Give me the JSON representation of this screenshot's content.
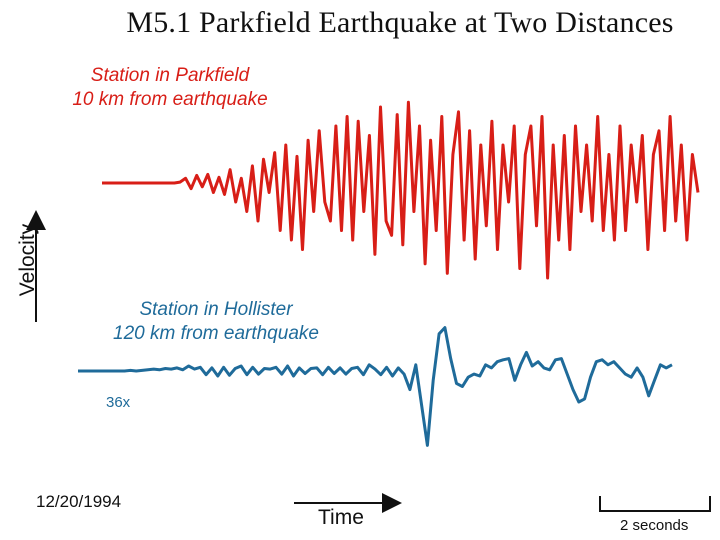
{
  "title": "M5.1 Parkfield Earthquake at Two Distances",
  "chart_data": {
    "type": "line",
    "title": "M5.1 Parkfield Earthquake at Two Distances",
    "xlabel": "Time",
    "ylabel": "Velocity",
    "scale_bar": "2 seconds",
    "date": "12/20/1994",
    "series": [
      {
        "name": "Station in Parkfield",
        "sublabel": "10 km from earthquake",
        "color": "#d81e17",
        "values": [
          0,
          0,
          0,
          0,
          0,
          0,
          0,
          0,
          0,
          0,
          0,
          0,
          0,
          0,
          1,
          5,
          -6,
          8,
          -4,
          9,
          -10,
          6,
          -12,
          14,
          -20,
          5,
          -30,
          18,
          -40,
          25,
          -10,
          32,
          -50,
          40,
          -60,
          28,
          -70,
          45,
          -30,
          55,
          -20,
          -40,
          60,
          -50,
          70,
          -60,
          65,
          -30,
          50,
          -75,
          80,
          -40,
          -55,
          72,
          -65,
          85,
          -30,
          60,
          -85,
          45,
          -50,
          70,
          -95,
          30,
          75,
          -60,
          55,
          -80,
          40,
          -45,
          65,
          -70,
          40,
          -20,
          60,
          -90,
          30,
          60,
          -45,
          70,
          -100,
          40,
          -60,
          50,
          -70,
          60,
          -30,
          40,
          -40,
          70,
          -50,
          30,
          -60,
          60,
          -50,
          40,
          -20,
          50,
          -70,
          30,
          55,
          -50,
          70,
          -40,
          40,
          -60,
          30,
          -10
        ],
        "scale": 1
      },
      {
        "name": "Station in Hollister",
        "sublabel": "120 km from earthquake",
        "note": "36x",
        "color": "#1f6b9a",
        "values": [
          0,
          0,
          0,
          0,
          0,
          0,
          0,
          0,
          0,
          1,
          0,
          1,
          2,
          3,
          2,
          4,
          3,
          5,
          2,
          8,
          3,
          6,
          -6,
          5,
          -8,
          6,
          -7,
          4,
          8,
          -6,
          6,
          -5,
          4,
          3,
          6,
          -5,
          8,
          -8,
          5,
          -4,
          4,
          5,
          -6,
          6,
          -4,
          5,
          -5,
          4,
          6,
          -6,
          10,
          3,
          -6,
          6,
          -8,
          5,
          -5,
          -30,
          10,
          -55,
          -120,
          -15,
          60,
          70,
          20,
          -20,
          -25,
          -10,
          -5,
          -8,
          10,
          5,
          15,
          18,
          20,
          -15,
          10,
          30,
          8,
          15,
          5,
          2,
          18,
          20,
          -5,
          -30,
          -50,
          -45,
          -10,
          15,
          18,
          10,
          15,
          5,
          -5,
          -10,
          5,
          -10,
          -40,
          -15,
          10,
          5,
          10
        ],
        "scale": 1
      }
    ]
  },
  "labels": {
    "red_name": "Station in Parkfield",
    "red_sub": "10 km from earthquake",
    "blue_name": "Station in Hollister",
    "blue_sub": "120 km from earthquake",
    "amp_note": "36x",
    "date": "12/20/1994",
    "time": "Time",
    "velocity": "Velocity",
    "scale": "2 seconds"
  }
}
